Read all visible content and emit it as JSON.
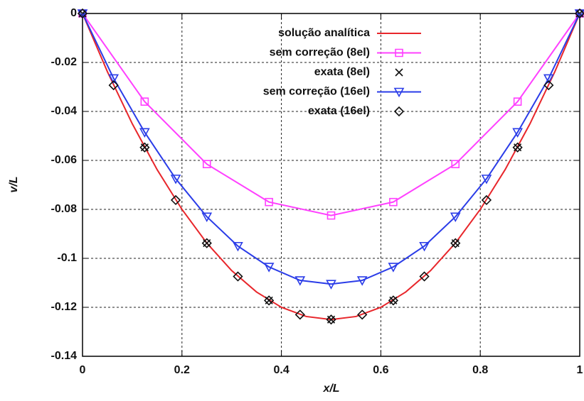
{
  "chart_data": {
    "type": "line",
    "xlabel": "x/L",
    "ylabel": "v/L",
    "xlim": [
      0,
      1
    ],
    "ylim": [
      -0.14,
      0
    ],
    "xticks": [
      0,
      0.2,
      0.4,
      0.6,
      0.8,
      1
    ],
    "yticks": [
      0,
      -0.02,
      -0.04,
      -0.06,
      -0.08,
      -0.1,
      -0.12,
      -0.14
    ],
    "grid": true,
    "legend": "top",
    "series": [
      {
        "name": "solução analítica",
        "color": "#e8262b",
        "line": true,
        "marker": null,
        "x": [
          0,
          0.05,
          0.1,
          0.15,
          0.2,
          0.25,
          0.3,
          0.35,
          0.4,
          0.45,
          0.5,
          0.55,
          0.6,
          0.65,
          0.7,
          0.75,
          0.8,
          0.85,
          0.9,
          0.95,
          1
        ],
        "values": [
          0,
          -0.02375,
          -0.045,
          -0.06375,
          -0.08,
          -0.09375,
          -0.105,
          -0.11375,
          -0.12,
          -0.12375,
          -0.125,
          -0.12375,
          -0.12,
          -0.11375,
          -0.105,
          -0.09375,
          -0.08,
          -0.06375,
          -0.045,
          -0.02375,
          0
        ]
      },
      {
        "name": "sem correção (8el)",
        "color": "#ff40ff",
        "line": true,
        "marker": "square",
        "x": [
          0,
          0.125,
          0.25,
          0.375,
          0.5,
          0.625,
          0.75,
          0.875,
          1
        ],
        "values": [
          0,
          -0.036,
          -0.0615,
          -0.077,
          -0.0825,
          -0.077,
          -0.0615,
          -0.036,
          0
        ]
      },
      {
        "name": "exata (8el)",
        "color": "#111111",
        "line": false,
        "marker": "cross",
        "x": [
          0,
          0.125,
          0.25,
          0.375,
          0.5,
          0.625,
          0.75,
          0.875,
          1
        ],
        "values": [
          0,
          -0.0547,
          -0.0938,
          -0.1172,
          -0.125,
          -0.1172,
          -0.0938,
          -0.0547,
          0
        ]
      },
      {
        "name": "sem correção (16el)",
        "color": "#2a3ce8",
        "line": true,
        "marker": "triangle-down",
        "x": [
          0,
          0.0625,
          0.125,
          0.1875,
          0.25,
          0.3125,
          0.375,
          0.4375,
          0.5,
          0.5625,
          0.625,
          0.6875,
          0.75,
          0.8125,
          0.875,
          0.9375,
          1
        ],
        "values": [
          0,
          -0.0265,
          -0.0485,
          -0.0675,
          -0.083,
          -0.095,
          -0.1035,
          -0.109,
          -0.1105,
          -0.109,
          -0.1035,
          -0.095,
          -0.083,
          -0.0675,
          -0.0485,
          -0.0265,
          0
        ]
      },
      {
        "name": "exata (16el)",
        "color": "#111111",
        "line": false,
        "marker": "diamond",
        "x": [
          0,
          0.0625,
          0.125,
          0.1875,
          0.25,
          0.3125,
          0.375,
          0.4375,
          0.5,
          0.5625,
          0.625,
          0.6875,
          0.75,
          0.8125,
          0.875,
          0.9375,
          1
        ],
        "values": [
          0,
          -0.0293,
          -0.0547,
          -0.0762,
          -0.0938,
          -0.1074,
          -0.1172,
          -0.123,
          -0.125,
          -0.123,
          -0.1172,
          -0.1074,
          -0.0938,
          -0.0762,
          -0.0547,
          -0.0293,
          0
        ]
      }
    ]
  }
}
